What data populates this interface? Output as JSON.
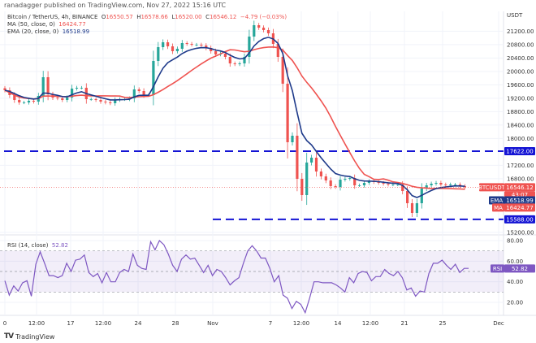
{
  "header": {
    "published": "ranadagger published on TradingView.com, Nov 27, 2022 15:16 UTC",
    "symbol": "Bitcoin / TetherUS, 4h, BINANCE",
    "ohlc": {
      "o_label": "O",
      "o": "16550.57",
      "h_label": "H",
      "h": "16578.66",
      "l_label": "L",
      "l": "16520.00",
      "c_label": "C",
      "c": "16546.12",
      "change": "−4.79 (−0.03%)"
    },
    "ma_label": "MA (50, close, 0)",
    "ma_value": "16424.77",
    "ema_label": "EMA (20, close, 0)",
    "ema_value": "16518.99",
    "rsi_label": "RSI (14, close)",
    "rsi_value": "52.82"
  },
  "footer": {
    "brand": "TradingView"
  },
  "colors": {
    "up": "#26a69a",
    "down": "#ef5350",
    "ma": "#ef5350",
    "ema": "#1e3a8a",
    "levels": "#1414d4",
    "rsi": "#7e57c2"
  },
  "badges": {
    "level_high": "17622.00",
    "level_low": "15588.00",
    "symbol_tag": "BTCUSDT",
    "price": "16546.12",
    "countdown": "43:07",
    "ema_tag": "EMA",
    "ema": "16518.99",
    "ma_tag": "MA",
    "ma": "16424.77",
    "rsi_tag": "RSI",
    "rsi": "52.82"
  },
  "chart_data": [
    {
      "type": "candlestick",
      "title": "Bitcoin / TetherUS, 4h, BINANCE",
      "ylabel": "USDT",
      "ylim": [
        15100,
        21500
      ],
      "yticks": [
        "21200.00",
        "20800.00",
        "20400.00",
        "20000.00",
        "19600.00",
        "19200.00",
        "18800.00",
        "18400.00",
        "18000.00",
        "17200.00",
        "16800.00",
        "15200.00"
      ],
      "ytick_values": [
        21200,
        20800,
        20400,
        20000,
        19600,
        19200,
        18800,
        18400,
        18000,
        17200,
        16800,
        15200
      ],
      "xticks": [
        "0",
        "12:00",
        "17",
        "12:00",
        "24",
        "28",
        "Nov",
        "7",
        "12:00",
        "14",
        "12:00",
        "21",
        "25",
        "Dec"
      ],
      "x_start": "2022-10-10",
      "x_end": "2022-11-27 12:00",
      "close_series_approx": [
        19440,
        19295,
        19149,
        19076,
        19076,
        19125,
        19100,
        19270,
        19828,
        19319,
        19222,
        19198,
        19149,
        19222,
        19488,
        19513,
        19513,
        19173,
        19173,
        19149,
        19100,
        19076,
        19052,
        19149,
        19173,
        19173,
        19198,
        19464,
        19416,
        19295,
        19295,
        20313,
        20725,
        20870,
        20749,
        20604,
        20676,
        20846,
        20822,
        20798,
        20798,
        20773,
        20700,
        20604,
        20507,
        20531,
        20434,
        20240,
        20216,
        20240,
        20434,
        21040,
        21379,
        21306,
        21234,
        21137,
        20822,
        20434,
        19634,
        17889,
        18083,
        16798,
        16313,
        17283,
        17428,
        17016,
        16870,
        16749,
        16580,
        16555,
        16773,
        16798,
        16822,
        16604,
        16604,
        16677,
        16725,
        16701,
        16677,
        16652,
        16628,
        16628,
        16628,
        16434,
        16070,
        15780,
        16070,
        16507,
        16604,
        16652,
        16677,
        16628,
        16604,
        16628,
        16628,
        16580,
        16546
      ],
      "horizontal_levels": [
        17622,
        15588
      ],
      "overlays": [
        "MA (50, close, 0)",
        "EMA (20, close, 0)"
      ],
      "grid": true
    },
    {
      "type": "line",
      "title": "RSI (14, close)",
      "ylim": [
        5,
        85
      ],
      "yticks": [
        "80.00",
        "60.00",
        "40.00",
        "20.00"
      ],
      "ytick_values": [
        80,
        60,
        40,
        20
      ],
      "bands": [
        30,
        50,
        70
      ],
      "values": [
        41,
        27,
        36,
        31,
        39,
        41,
        26,
        57,
        69,
        58,
        46,
        46,
        44,
        46,
        58,
        50,
        61,
        62,
        66,
        49,
        45,
        48,
        39,
        49,
        40,
        40,
        49,
        52,
        50,
        67,
        56,
        53,
        52,
        79,
        71,
        80,
        76,
        67,
        56,
        50,
        62,
        66,
        62,
        63,
        56,
        49,
        56,
        46,
        52,
        50,
        44,
        37,
        41,
        44,
        58,
        70,
        75,
        70,
        63,
        63,
        53,
        40,
        46,
        27,
        24,
        14,
        21,
        18,
        10,
        24,
        40,
        40,
        39,
        39,
        39,
        37,
        34,
        30,
        44,
        39,
        48,
        50,
        49,
        41,
        45,
        45,
        52,
        48,
        46,
        50,
        44,
        32,
        34,
        26,
        31,
        30,
        48,
        58,
        58,
        61,
        56,
        52,
        57,
        49,
        53,
        53
      ]
    }
  ]
}
